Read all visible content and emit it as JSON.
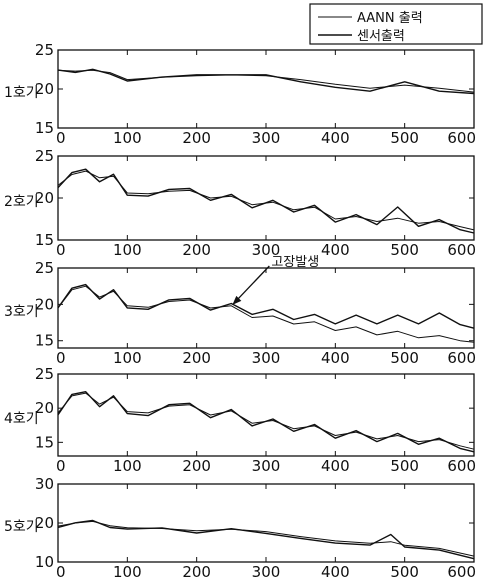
{
  "legend": {
    "entries": [
      "AANN 출력",
      "센서출력"
    ]
  },
  "colors": {
    "line": "#111111",
    "background": "#ffffff"
  },
  "chart_data": [
    {
      "type": "line",
      "ylabel": "1호기",
      "xlim": [
        0,
        600
      ],
      "ylim": [
        15,
        25
      ],
      "xticks": [
        0,
        100,
        200,
        300,
        400,
        500,
        600
      ],
      "yticks": [
        15,
        20,
        25
      ],
      "grid": false,
      "series": [
        {
          "name": "AANN 출력",
          "x": [
            0,
            25,
            50,
            75,
            100,
            150,
            200,
            250,
            300,
            350,
            400,
            450,
            500,
            550,
            600
          ],
          "values": [
            22.4,
            22.3,
            22.4,
            22.1,
            21.2,
            21.5,
            21.7,
            21.8,
            21.7,
            21.2,
            20.6,
            20.1,
            20.5,
            20.1,
            19.6
          ]
        },
        {
          "name": "센서출력",
          "x": [
            0,
            25,
            50,
            75,
            100,
            150,
            200,
            250,
            300,
            350,
            400,
            450,
            500,
            550,
            600
          ],
          "values": [
            22.5,
            22.2,
            22.6,
            22.0,
            21.1,
            21.6,
            21.9,
            21.9,
            21.9,
            21.0,
            20.3,
            19.8,
            21.0,
            19.8,
            19.5
          ]
        }
      ]
    },
    {
      "type": "line",
      "ylabel": "2호기",
      "xlim": [
        0,
        600
      ],
      "ylim": [
        15,
        25
      ],
      "xticks": [
        0,
        100,
        200,
        300,
        400,
        500,
        600
      ],
      "yticks": [
        15,
        20,
        25
      ],
      "grid": false,
      "series": [
        {
          "name": "AANN 출력",
          "x": [
            0,
            20,
            40,
            60,
            80,
            100,
            130,
            160,
            190,
            220,
            250,
            280,
            310,
            340,
            370,
            400,
            430,
            460,
            490,
            520,
            550,
            580,
            600
          ],
          "values": [
            21.5,
            22.8,
            23.2,
            22.4,
            22.6,
            20.6,
            20.5,
            20.8,
            20.9,
            20.0,
            20.2,
            19.2,
            19.5,
            18.6,
            18.9,
            17.5,
            17.8,
            17.2,
            17.6,
            17.0,
            17.2,
            16.6,
            16.2
          ]
        },
        {
          "name": "센서출력",
          "x": [
            0,
            20,
            40,
            60,
            80,
            100,
            130,
            160,
            190,
            220,
            250,
            280,
            310,
            340,
            370,
            400,
            430,
            460,
            490,
            520,
            550,
            580,
            600
          ],
          "values": [
            21.3,
            23.1,
            23.5,
            22.0,
            22.9,
            20.4,
            20.3,
            21.1,
            21.2,
            19.8,
            20.5,
            18.9,
            19.8,
            18.4,
            19.2,
            17.2,
            18.1,
            16.9,
            19.0,
            16.7,
            17.5,
            16.3,
            15.9
          ]
        }
      ]
    },
    {
      "type": "line",
      "ylabel": "3호기",
      "xlim": [
        0,
        600
      ],
      "ylim": [
        14,
        25
      ],
      "xticks": [
        0,
        100,
        200,
        300,
        400,
        500,
        600
      ],
      "yticks": [
        15,
        20,
        25
      ],
      "grid": false,
      "annotation": {
        "text": "고장발생",
        "x": 250,
        "y": 19.8
      },
      "series": [
        {
          "name": "AANN 출력",
          "x": [
            0,
            20,
            40,
            60,
            80,
            100,
            130,
            160,
            190,
            220,
            250,
            280,
            310,
            340,
            370,
            400,
            430,
            460,
            490,
            520,
            550,
            580,
            600
          ],
          "values": [
            19.5,
            22.0,
            22.5,
            21.0,
            21.8,
            19.8,
            19.6,
            20.4,
            20.6,
            19.5,
            19.8,
            18.2,
            18.4,
            17.3,
            17.6,
            16.4,
            16.9,
            15.8,
            16.3,
            15.4,
            15.7,
            15.0,
            14.8
          ]
        },
        {
          "name": "센서출력",
          "x": [
            0,
            20,
            40,
            60,
            80,
            100,
            130,
            160,
            190,
            220,
            250,
            280,
            310,
            340,
            370,
            400,
            430,
            460,
            490,
            520,
            550,
            580,
            600
          ],
          "values": [
            19.6,
            22.3,
            22.8,
            20.8,
            22.1,
            19.6,
            19.4,
            20.7,
            20.9,
            19.3,
            20.2,
            18.7,
            19.4,
            18.0,
            18.7,
            17.4,
            18.6,
            17.4,
            18.6,
            17.4,
            18.9,
            17.3,
            16.8
          ]
        }
      ]
    },
    {
      "type": "line",
      "ylabel": "4호기",
      "xlim": [
        0,
        600
      ],
      "ylim": [
        13,
        25
      ],
      "xticks": [
        0,
        100,
        200,
        300,
        400,
        500,
        600
      ],
      "yticks": [
        15,
        20,
        25
      ],
      "grid": false,
      "series": [
        {
          "name": "AANN 출력",
          "x": [
            0,
            20,
            40,
            60,
            80,
            100,
            130,
            160,
            190,
            220,
            250,
            280,
            310,
            340,
            370,
            400,
            430,
            460,
            490,
            520,
            550,
            580,
            600
          ],
          "values": [
            19.3,
            21.8,
            22.2,
            20.6,
            21.6,
            19.5,
            19.3,
            20.3,
            20.5,
            19.0,
            19.6,
            17.8,
            18.2,
            17.0,
            17.4,
            16.0,
            16.5,
            15.5,
            16.0,
            15.1,
            15.4,
            14.5,
            14.0
          ]
        },
        {
          "name": "센서출력",
          "x": [
            0,
            20,
            40,
            60,
            80,
            100,
            130,
            160,
            190,
            220,
            250,
            280,
            310,
            340,
            370,
            400,
            430,
            460,
            490,
            520,
            550,
            580,
            600
          ],
          "values": [
            19.1,
            22.1,
            22.5,
            20.3,
            21.9,
            19.3,
            19.0,
            20.6,
            20.8,
            18.7,
            19.9,
            17.5,
            18.5,
            16.7,
            17.7,
            15.7,
            16.8,
            15.2,
            16.4,
            14.8,
            15.7,
            14.2,
            13.7
          ]
        }
      ]
    },
    {
      "type": "line",
      "ylabel": "5호기",
      "xlim": [
        0,
        600
      ],
      "ylim": [
        10,
        30
      ],
      "xticks": [
        0,
        100,
        200,
        300,
        400,
        500,
        600
      ],
      "yticks": [
        10,
        20,
        30
      ],
      "grid": false,
      "series": [
        {
          "name": "AANN 출력",
          "x": [
            0,
            25,
            50,
            75,
            100,
            150,
            200,
            250,
            300,
            350,
            400,
            450,
            480,
            500,
            550,
            600
          ],
          "values": [
            19.2,
            20.0,
            20.4,
            19.3,
            18.8,
            18.6,
            18.0,
            18.4,
            17.8,
            16.5,
            15.4,
            14.8,
            15.2,
            14.3,
            13.5,
            11.5
          ]
        },
        {
          "name": "센서출력",
          "x": [
            0,
            25,
            50,
            75,
            100,
            150,
            200,
            250,
            300,
            350,
            400,
            450,
            480,
            500,
            550,
            600
          ],
          "values": [
            19.0,
            20.2,
            20.8,
            19.0,
            18.6,
            18.9,
            17.6,
            18.7,
            17.5,
            16.2,
            15.0,
            14.5,
            17.2,
            14.0,
            13.2,
            11.0
          ]
        }
      ]
    }
  ]
}
